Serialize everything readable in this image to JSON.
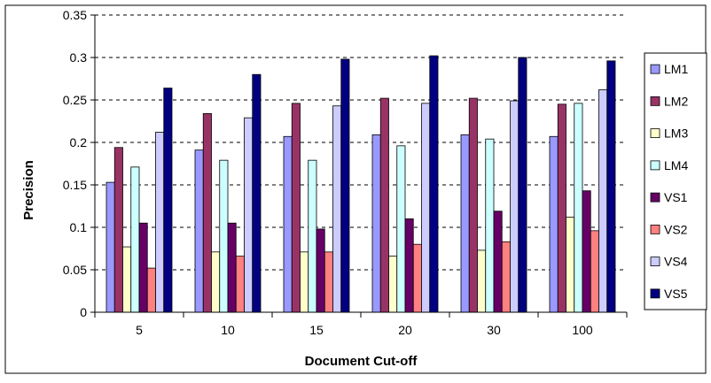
{
  "chart_data": {
    "type": "bar",
    "title": "",
    "xlabel": "Document Cut-off",
    "ylabel": "Precision",
    "categories": [
      "5",
      "10",
      "15",
      "20",
      "30",
      "100"
    ],
    "ylim": [
      0,
      0.35
    ],
    "yticks": [
      "0",
      "0.05",
      "0.1",
      "0.15",
      "0.2",
      "0.25",
      "0.3",
      "0.35"
    ],
    "grid": "horizontal-dashed",
    "legend_position": "right",
    "series": [
      {
        "name": "LM1",
        "color": "#9999ff",
        "values": [
          0.153,
          0.191,
          0.207,
          0.209,
          0.209,
          0.207
        ]
      },
      {
        "name": "LM2",
        "color": "#993366",
        "values": [
          0.194,
          0.234,
          0.246,
          0.252,
          0.252,
          0.245
        ]
      },
      {
        "name": "LM3",
        "color": "#ffffcc",
        "values": [
          0.077,
          0.071,
          0.071,
          0.066,
          0.073,
          0.112
        ]
      },
      {
        "name": "LM4",
        "color": "#ccffff",
        "values": [
          0.171,
          0.179,
          0.179,
          0.196,
          0.204,
          0.246
        ]
      },
      {
        "name": "VS1",
        "color": "#660066",
        "values": [
          0.105,
          0.105,
          0.098,
          0.11,
          0.119,
          0.143
        ]
      },
      {
        "name": "VS2",
        "color": "#ff8080",
        "values": [
          0.052,
          0.066,
          0.071,
          0.08,
          0.083,
          0.096
        ]
      },
      {
        "name": "VS4",
        "color": "#ccccff",
        "values": [
          0.212,
          0.229,
          0.243,
          0.246,
          0.249,
          0.262
        ]
      },
      {
        "name": "VS5",
        "color": "#000080",
        "values": [
          0.264,
          0.28,
          0.298,
          0.302,
          0.3,
          0.296
        ]
      }
    ]
  }
}
